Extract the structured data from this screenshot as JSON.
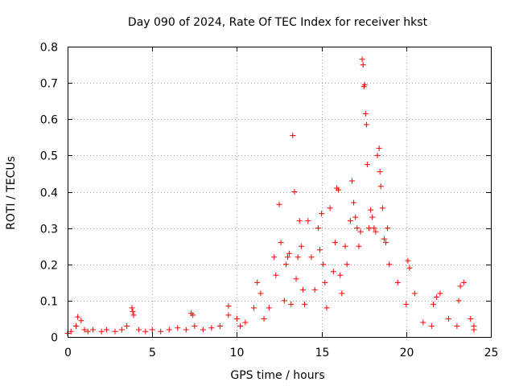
{
  "chart_data": {
    "type": "scatter",
    "title": "Day 090 of 2024, Rate Of TEC Index for receiver hkst",
    "xlabel": "GPS time / hours",
    "ylabel": "ROTI / TECUs",
    "xlim": [
      0,
      25
    ],
    "ylim": [
      0,
      0.8
    ],
    "xticks": [
      "0",
      "5",
      "10",
      "15",
      "20",
      "25"
    ],
    "yticks": [
      "0",
      "0.1",
      "0.2",
      "0.3",
      "0.4",
      "0.5",
      "0.6",
      "0.7",
      "0.8"
    ],
    "grid": true,
    "marker": "+",
    "series": [
      {
        "name": "ROTI",
        "color": "#ff0000",
        "x": [
          0.0,
          0.2,
          0.5,
          0.6,
          0.8,
          1.0,
          1.2,
          1.5,
          2.0,
          2.3,
          2.8,
          3.2,
          3.5,
          3.8,
          3.85,
          3.9,
          4.2,
          4.6,
          5.0,
          5.5,
          6.0,
          6.5,
          7.0,
          7.3,
          7.4,
          7.5,
          8.0,
          8.5,
          9.0,
          9.5,
          9.5,
          10.0,
          10.2,
          10.5,
          11.0,
          11.2,
          11.4,
          11.6,
          11.9,
          12.2,
          12.3,
          12.5,
          12.6,
          12.8,
          12.9,
          13.0,
          13.1,
          13.2,
          13.3,
          13.4,
          13.5,
          13.6,
          13.7,
          13.8,
          13.9,
          14.0,
          14.2,
          14.4,
          14.6,
          14.8,
          14.9,
          15.0,
          15.1,
          15.2,
          15.3,
          15.5,
          15.7,
          15.8,
          15.9,
          16.0,
          16.1,
          16.2,
          16.4,
          16.5,
          16.7,
          16.8,
          16.9,
          17.0,
          17.1,
          17.2,
          17.3,
          17.4,
          17.45,
          17.5,
          17.55,
          17.6,
          17.65,
          17.7,
          17.8,
          17.9,
          18.0,
          18.1,
          18.2,
          18.3,
          18.4,
          18.45,
          18.5,
          18.6,
          18.7,
          18.8,
          18.9,
          19.0,
          19.5,
          20.0,
          20.1,
          20.2,
          20.5,
          21.0,
          21.5,
          21.6,
          21.8,
          22.0,
          22.5,
          23.0,
          23.1,
          23.2,
          23.4,
          23.8,
          24.0,
          24.0
        ],
        "y": [
          0.01,
          0.015,
          0.03,
          0.055,
          0.045,
          0.02,
          0.015,
          0.02,
          0.015,
          0.02,
          0.015,
          0.02,
          0.03,
          0.08,
          0.07,
          0.06,
          0.02,
          0.015,
          0.02,
          0.015,
          0.02,
          0.025,
          0.02,
          0.065,
          0.06,
          0.03,
          0.02,
          0.025,
          0.03,
          0.06,
          0.085,
          0.05,
          0.03,
          0.04,
          0.08,
          0.15,
          0.12,
          0.05,
          0.08,
          0.22,
          0.17,
          0.365,
          0.26,
          0.1,
          0.2,
          0.22,
          0.23,
          0.09,
          0.555,
          0.4,
          0.16,
          0.22,
          0.32,
          0.25,
          0.13,
          0.09,
          0.32,
          0.22,
          0.13,
          0.3,
          0.24,
          0.34,
          0.2,
          0.15,
          0.08,
          0.355,
          0.18,
          0.26,
          0.41,
          0.405,
          0.17,
          0.12,
          0.25,
          0.2,
          0.32,
          0.43,
          0.37,
          0.33,
          0.3,
          0.25,
          0.29,
          0.765,
          0.75,
          0.69,
          0.695,
          0.615,
          0.585,
          0.475,
          0.3,
          0.35,
          0.33,
          0.3,
          0.29,
          0.5,
          0.52,
          0.455,
          0.415,
          0.355,
          0.27,
          0.26,
          0.3,
          0.2,
          0.15,
          0.09,
          0.21,
          0.19,
          0.12,
          0.04,
          0.03,
          0.09,
          0.11,
          0.12,
          0.05,
          0.03,
          0.1,
          0.14,
          0.15,
          0.05,
          0.03,
          0.02
        ]
      }
    ]
  }
}
